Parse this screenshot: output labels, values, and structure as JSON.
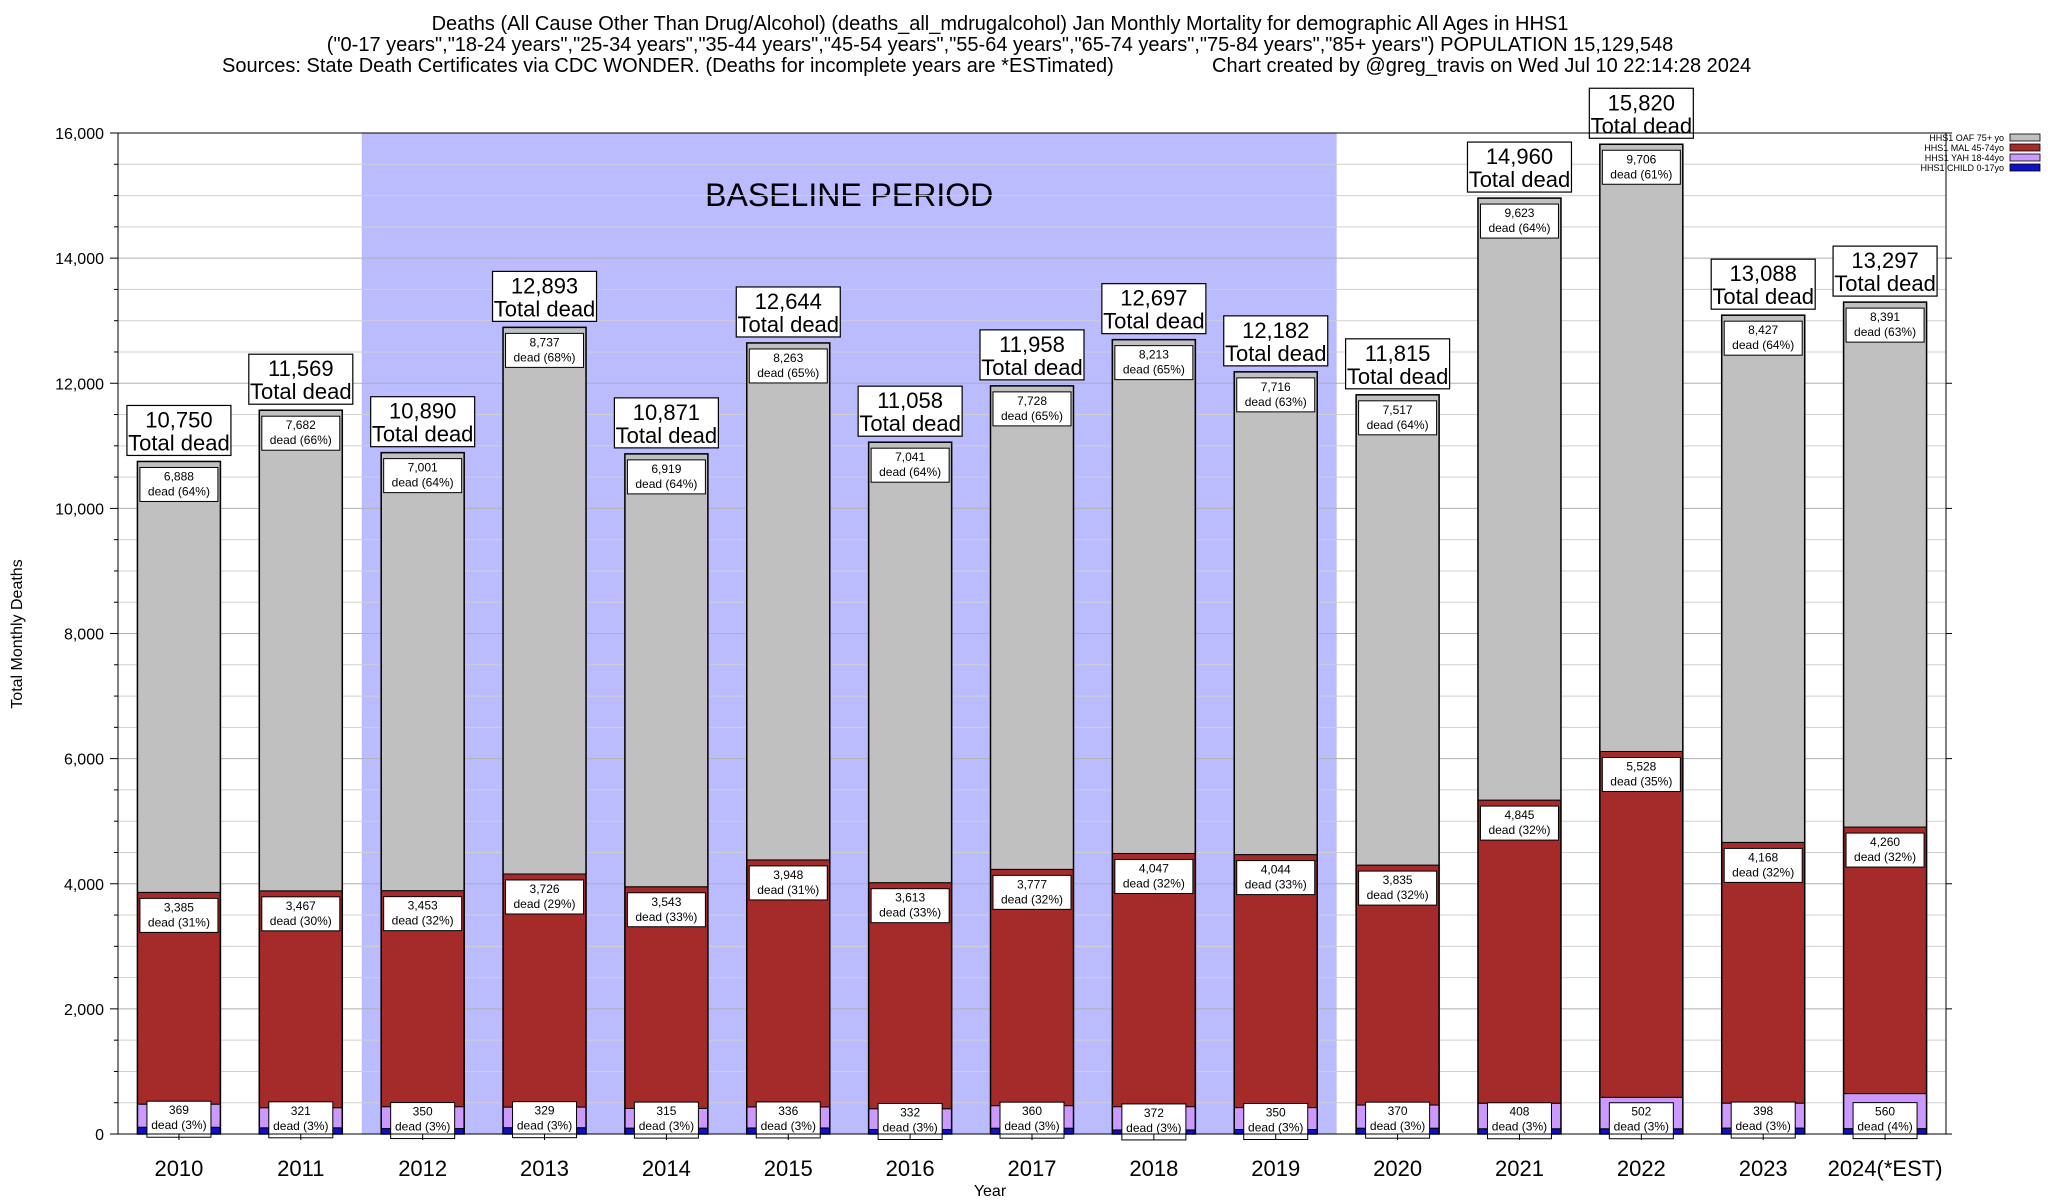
{
  "chart_data": {
    "type": "bar",
    "stacked": true,
    "title_lines": [
      "Deaths (All Cause Other Than Drug/Alcohol) (deaths_all_mdrugalcohol) Jan Monthly Mortality for demographic All Ages in HHS1",
      "(\"0-17 years\",\"18-24 years\",\"25-34 years\",\"35-44 years\",\"45-54 years\",\"55-64 years\",\"65-74 years\",\"75-84 years\",\"85+ years\") POPULATION 15,129,548",
      "Sources: State Death Certificates via CDC WONDER. (Deaths for incomplete years are *ESTimated)",
      "Chart created by @greg_travis on Wed Jul 10 22:14:28 2024"
    ],
    "xlabel": "Year",
    "ylabel": "Total Monthly Deaths",
    "ylim": [
      0,
      16000
    ],
    "yticks": [
      0,
      2000,
      4000,
      6000,
      8000,
      10000,
      12000,
      14000,
      16000
    ],
    "ytick_labels": [
      "0",
      "2,000",
      "4,000",
      "6,000",
      "8,000",
      "10,000",
      "12,000",
      "14,000",
      "16,000"
    ],
    "grid": true,
    "legend_position": "top-right",
    "categories": [
      "2010",
      "2011",
      "2012",
      "2013",
      "2014",
      "2015",
      "2016",
      "2017",
      "2018",
      "2019",
      "2020",
      "2021",
      "2022",
      "2023",
      "2024(*EST)"
    ],
    "series": [
      {
        "name": "HHS1 CHILD 0-17yo",
        "color": "#1010c8",
        "values": [
          108,
          99,
          87,
          101,
          94,
          97,
          72,
          93,
          65,
          72,
          93,
          84,
          84,
          95,
          86
        ]
      },
      {
        "name": "HHS1 YAH 18-44yo",
        "color": "#cc99ff",
        "values": [
          369,
          321,
          350,
          329,
          315,
          336,
          332,
          360,
          372,
          350,
          370,
          408,
          502,
          398,
          560
        ],
        "labels": [
          "369",
          "321",
          "350",
          "329",
          "315",
          "336",
          "332",
          "360",
          "372",
          "350",
          "370",
          "408",
          "502",
          "398",
          "560"
        ],
        "pct_labels": [
          "dead (3%)",
          "dead (3%)",
          "dead (3%)",
          "dead (3%)",
          "dead (3%)",
          "dead (3%)",
          "dead (3%)",
          "dead (3%)",
          "dead (3%)",
          "dead (3%)",
          "dead (3%)",
          "dead (3%)",
          "dead (3%)",
          "dead (3%)",
          "dead (4%)"
        ]
      },
      {
        "name": "HHS1 MAL 45-74yo",
        "color": "#a52a2a",
        "values": [
          3385,
          3467,
          3453,
          3726,
          3543,
          3948,
          3613,
          3777,
          4047,
          4044,
          3835,
          4845,
          5528,
          4168,
          4260
        ],
        "labels": [
          "3,385",
          "3,467",
          "3,453",
          "3,726",
          "3,543",
          "3,948",
          "3,613",
          "3,777",
          "4,047",
          "4,044",
          "3,835",
          "4,845",
          "5,528",
          "4,168",
          "4,260"
        ],
        "pct_labels": [
          "dead (31%)",
          "dead (30%)",
          "dead (32%)",
          "dead (29%)",
          "dead (33%)",
          "dead (31%)",
          "dead (33%)",
          "dead (32%)",
          "dead (32%)",
          "dead (33%)",
          "dead (32%)",
          "dead (32%)",
          "dead (35%)",
          "dead (32%)",
          "dead (32%)"
        ]
      },
      {
        "name": "HHS1 OAF 75+ yo",
        "color": "#c0c0c0",
        "values": [
          6888,
          7682,
          7001,
          8737,
          6919,
          8263,
          7041,
          7728,
          8213,
          7716,
          7517,
          9623,
          9706,
          8427,
          8391
        ],
        "labels": [
          "6,888",
          "7,682",
          "7,001",
          "8,737",
          "6,919",
          "8,263",
          "7,041",
          "7,728",
          "8,213",
          "7,716",
          "7,517",
          "9,623",
          "9,706",
          "8,427",
          "8,391"
        ],
        "pct_labels": [
          "dead (64%)",
          "dead (66%)",
          "dead (64%)",
          "dead (68%)",
          "dead (64%)",
          "dead (65%)",
          "dead (64%)",
          "dead (65%)",
          "dead (65%)",
          "dead (63%)",
          "dead (64%)",
          "dead (64%)",
          "dead (61%)",
          "dead (64%)",
          "dead (63%)"
        ]
      }
    ],
    "totals": [
      10750,
      11569,
      10890,
      12893,
      10871,
      12644,
      11058,
      11958,
      12697,
      12182,
      11815,
      14960,
      15820,
      13088,
      13297
    ],
    "total_labels": [
      "10,750",
      "11,569",
      "10,890",
      "12,893",
      "10,871",
      "12,644",
      "11,058",
      "11,958",
      "12,697",
      "12,182",
      "11,815",
      "14,960",
      "15,820",
      "13,088",
      "13,297"
    ],
    "total_suffix": "Total dead",
    "baseline": {
      "label": "BASELINE PERIOD",
      "from": "2012",
      "to": "2019",
      "color": "#bbbbff"
    }
  }
}
